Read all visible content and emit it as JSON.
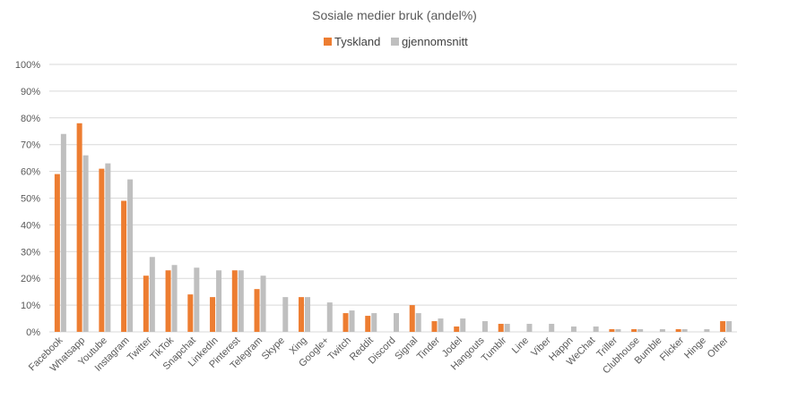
{
  "chart_data": {
    "type": "bar",
    "title": "Sosiale medier bruk (andel%)",
    "xlabel": "",
    "ylabel": "",
    "ylim": [
      0,
      100
    ],
    "yticks": [
      "0%",
      "10%",
      "20%",
      "30%",
      "40%",
      "50%",
      "60%",
      "70%",
      "80%",
      "90%",
      "100%"
    ],
    "grid": true,
    "legend_position": "top",
    "categories": [
      "Facebook",
      "Whatsapp",
      "Youtube",
      "Instagram",
      "Twitter",
      "TikTok",
      "Snapchat",
      "LinkedIn",
      "Pinterest",
      "Telegram",
      "Skype",
      "Xing",
      "Google+",
      "Twitch",
      "Reddit",
      "Discord",
      "Signal",
      "Tinder",
      "Jodel",
      "Hangouts",
      "Tumblr",
      "Line",
      "Viber",
      "Happn",
      "WeChat",
      "Triller",
      "Clubhouse",
      "Bumble",
      "Flicker",
      "Hinge",
      "Other"
    ],
    "series": [
      {
        "name": "Tyskland",
        "color": "#ed7d31",
        "values": [
          59,
          78,
          61,
          49,
          21,
          23,
          14,
          13,
          23,
          16,
          0,
          13,
          0,
          7,
          6,
          0,
          10,
          4,
          2,
          0,
          3,
          0,
          0,
          0,
          0,
          1,
          1,
          0,
          1,
          0,
          4
        ]
      },
      {
        "name": "gjennomsnitt",
        "color": "#bfbfbf",
        "values": [
          74,
          66,
          63,
          57,
          28,
          25,
          24,
          23,
          23,
          21,
          13,
          13,
          11,
          8,
          7,
          7,
          7,
          5,
          5,
          4,
          3,
          3,
          3,
          2,
          2,
          1,
          1,
          1,
          1,
          1,
          4
        ]
      }
    ]
  }
}
